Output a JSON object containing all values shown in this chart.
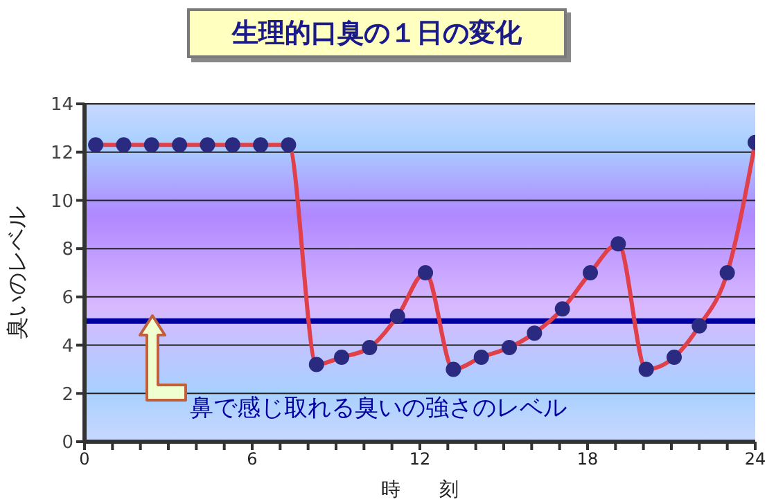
{
  "chart_data": {
    "type": "line",
    "title": "生理的口臭の１日の変化",
    "xlabel": "時　　刻",
    "ylabel": "臭いのレベル",
    "x": [
      0.4,
      1.4,
      2.4,
      3.4,
      4.4,
      5.3,
      6.3,
      7.3,
      8.3,
      9.2,
      10.2,
      11.2,
      12.2,
      13.2,
      14.2,
      15.2,
      16.1,
      17.1,
      18.1,
      19.1,
      20.1,
      21.1,
      22.0,
      23.0,
      24.0
    ],
    "series": [
      {
        "color": "#e0404a",
        "values": [
          12.3,
          12.3,
          12.3,
          12.3,
          12.3,
          12.3,
          12.3,
          12.3,
          3.2,
          3.5,
          3.9,
          5.2,
          7.0,
          3.0,
          3.5,
          3.9,
          4.5,
          5.5,
          7.0,
          8.2,
          3.0,
          3.5,
          4.8,
          7.0,
          12.4
        ]
      }
    ],
    "xlim": [
      0,
      24
    ],
    "xticks": [
      0,
      {
        "value": 1,
        "label": null
      },
      {
        "value": 2,
        "label": null
      },
      {
        "value": 3,
        "label": null
      },
      {
        "value": 4,
        "label": null
      },
      {
        "value": 5,
        "label": null
      },
      6,
      {
        "value": 7,
        "label": null
      },
      {
        "value": 8,
        "label": null
      },
      {
        "value": 9,
        "label": null
      },
      {
        "value": 10,
        "label": null
      },
      {
        "value": 11,
        "label": null
      },
      12,
      {
        "value": 13,
        "label": null
      },
      {
        "value": 14,
        "label": null
      },
      {
        "value": 15,
        "label": null
      },
      {
        "value": 16,
        "label": null
      },
      {
        "value": 17,
        "label": null
      },
      18,
      {
        "value": 19,
        "label": null
      },
      {
        "value": 20,
        "label": null
      },
      {
        "value": 21,
        "label": null
      },
      {
        "value": 22,
        "label": null
      },
      {
        "value": 23,
        "label": null
      },
      24
    ],
    "ylim": [
      0,
      14
    ],
    "yticks": [
      0,
      2,
      4,
      6,
      8,
      10,
      12,
      14
    ],
    "grid": "y",
    "marker": "circle",
    "line_style": "solid",
    "ref_lines": [
      {
        "axis": "y",
        "value": 5,
        "label": "鼻で感じ取れる臭いの強さのレベル",
        "color": "#0000a0"
      }
    ]
  }
}
